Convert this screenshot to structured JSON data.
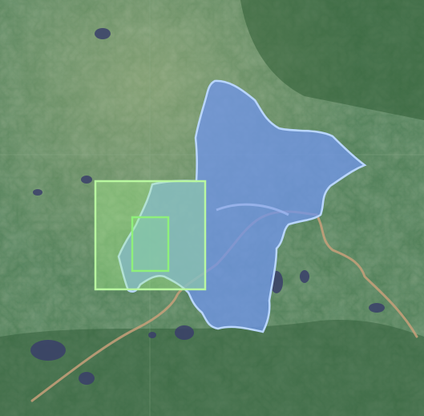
{
  "map": {
    "base_type": "satellite",
    "region_fill": "#6f95e8",
    "region_stroke": "#b9d6ff",
    "outer_box_color": "#a9f58d",
    "inner_box_color": "#8ef07a",
    "river_color": "#c8a07a"
  }
}
